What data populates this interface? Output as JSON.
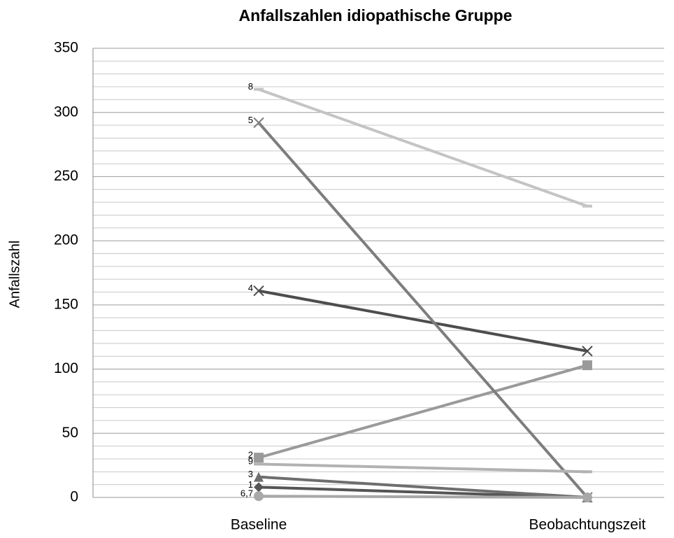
{
  "chart_data": {
    "type": "line",
    "title": "Anfallszahlen idiopathische Gruppe",
    "y_label": "Anfallszahl",
    "categories": [
      "Baseline",
      "Beobachtungszeit"
    ],
    "series": [
      {
        "name": "1",
        "color": "#555555",
        "marker": "diamond",
        "values": [
          8,
          0
        ]
      },
      {
        "name": "2",
        "color": "#9a9a9a",
        "marker": "square",
        "values": [
          31,
          103
        ]
      },
      {
        "name": "3",
        "color": "#6e6e6e",
        "marker": "triangle",
        "values": [
          16,
          0
        ]
      },
      {
        "name": "4",
        "color": "#4d4d4d",
        "marker": "x",
        "values": [
          161,
          114
        ]
      },
      {
        "name": "5",
        "color": "#7d7d7d",
        "marker": "x",
        "values": [
          292,
          0
        ]
      },
      {
        "name": "6,7",
        "color": "#a8a8a8",
        "marker": "circle",
        "values": [
          1,
          0
        ]
      },
      {
        "name": "8",
        "color": "#c4c4c4",
        "marker": "dash",
        "values": [
          318,
          227
        ]
      },
      {
        "name": "9",
        "color": "#b2b2b2",
        "marker": "dash",
        "values": [
          26,
          20
        ]
      }
    ],
    "ylim": [
      0,
      350
    ],
    "yticks": [
      0,
      50,
      100,
      150,
      200,
      250,
      300,
      350
    ],
    "minor_yticks": [
      10,
      20,
      30,
      40,
      60,
      70,
      80,
      90,
      110,
      120,
      130,
      140,
      160,
      170,
      180,
      190,
      210,
      220,
      230,
      240,
      260,
      270,
      280,
      290,
      310,
      320,
      330,
      340
    ],
    "grid": true
  }
}
